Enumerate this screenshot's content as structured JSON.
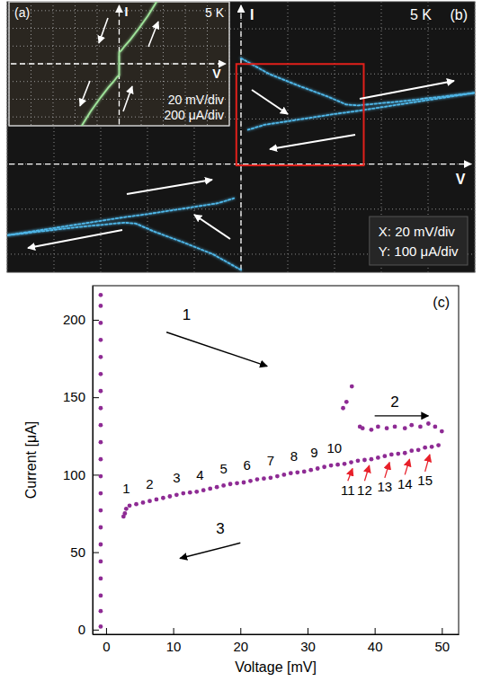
{
  "chart_data": [
    {
      "type": "line",
      "title": "(a)",
      "xlabel": "V",
      "ylabel": "I",
      "annotations": [
        {
          "text": "5 K"
        },
        {
          "text": "20 mV/div"
        },
        {
          "text": "200 μA/div"
        }
      ],
      "x": [
        -34,
        -26,
        -18,
        -10,
        -5,
        -2,
        0,
        0,
        2,
        5,
        10,
        18,
        26,
        34
      ],
      "values": [
        -700,
        -540,
        -400,
        -270,
        -200,
        -150,
        -130,
        130,
        150,
        200,
        270,
        400,
        540,
        700
      ],
      "color": "#9fe39a",
      "line_style": "solid",
      "xlim": [
        -100,
        100
      ],
      "ylim": [
        -700,
        700
      ],
      "xticks": [
        -100,
        -80,
        -60,
        -40,
        -20,
        0,
        20,
        40,
        60,
        80,
        100
      ],
      "yticks": [
        -600,
        -400,
        -200,
        0,
        200,
        400,
        600
      ],
      "grid": true,
      "tick_labels": false
    },
    {
      "type": "line",
      "title": "(b)",
      "xlabel": "V",
      "ylabel": "I",
      "annotations": [
        {
          "text": "5 K"
        },
        {
          "text": "X: 20 mV/div"
        },
        {
          "text": "Y: 100 μA/div"
        }
      ],
      "series": [
        {
          "x": [
            0,
            0,
            0,
            0,
            0,
            0,
            0,
            0,
            0,
            0,
            0
          ],
          "values": [
            -235,
            -180,
            -130,
            -80,
            -30,
            0,
            30,
            80,
            130,
            180,
            235
          ],
          "line_style": "solid"
        },
        {
          "x": [
            0,
            12,
            24,
            37,
            45,
            50,
            60,
            70,
            80,
            90,
            100
          ],
          "values": [
            235,
            200,
            175,
            150,
            132,
            130,
            135,
            140,
            146,
            152,
            158
          ],
          "line_style": "dotted"
        },
        {
          "x": [
            100,
            90,
            80,
            70,
            60,
            50,
            40,
            30,
            20,
            10,
            3
          ],
          "values": [
            158,
            150,
            142,
            134,
            126,
            118,
            111,
            103,
            95,
            87,
            76
          ],
          "line_style": "dotted"
        },
        {
          "x": [
            0,
            -12,
            -24,
            -37,
            -45,
            -50,
            -60,
            -70,
            -80,
            -90,
            -100
          ],
          "values": [
            -235,
            -200,
            -175,
            -150,
            -132,
            -130,
            -135,
            -140,
            -146,
            -152,
            -158
          ],
          "line_style": "dotted"
        },
        {
          "x": [
            -100,
            -90,
            -80,
            -70,
            -60,
            -50,
            -40,
            -30,
            -20,
            -10,
            -3
          ],
          "values": [
            -158,
            -150,
            -142,
            -134,
            -126,
            -118,
            -111,
            -103,
            -95,
            -87,
            -76
          ],
          "line_style": "dotted"
        }
      ],
      "color": "#4fb8ea",
      "xlim": [
        -100,
        100
      ],
      "ylim": [
        -240,
        360
      ],
      "xticks": [
        -100,
        -80,
        -60,
        -40,
        -20,
        0,
        20,
        40,
        60,
        80,
        100
      ],
      "yticks": [
        -200,
        -100,
        0,
        100,
        200,
        300
      ],
      "grid": true,
      "tick_labels": false
    },
    {
      "type": "scatter",
      "title": "(c)",
      "xlabel": "Voltage [mV]",
      "ylabel": "Current [μA]",
      "x": [
        -0.8,
        -0.8,
        -0.8,
        -0.8,
        -0.8,
        -0.8,
        -0.8,
        -0.8,
        -0.8,
        -0.8,
        -0.8,
        -0.8,
        -0.8,
        -0.8,
        -0.8,
        -0.8,
        -0.8,
        -0.8,
        -0.8,
        -0.8,
        -0.8,
        35.3,
        35.8,
        36.6,
        37.8,
        38.2,
        39.5,
        40.5,
        41.8,
        43,
        44.5,
        45.5,
        46.8,
        48,
        49,
        50,
        49.5,
        48.5,
        47.5,
        46.5,
        45.5,
        44.5,
        43.5,
        42.5,
        41.5,
        40.5,
        39.5,
        38.5,
        37.5,
        36.5,
        35.5,
        34.5,
        33.5,
        32.5,
        31.5,
        30.5,
        29.5,
        28.5,
        27.5,
        26.5,
        25.5,
        24.5,
        23.5,
        22.5,
        21.5,
        20.5,
        19.5,
        18.5,
        17.5,
        16.5,
        15.5,
        14.5,
        13.5,
        12.5,
        11.5,
        10.5,
        9.5,
        8.5,
        7.5,
        6.5,
        5.5,
        4.5,
        3.5,
        3,
        2.8,
        2.6
      ],
      "values": [
        2,
        12,
        22,
        33,
        44,
        55,
        66,
        77,
        88,
        99,
        110,
        121,
        132,
        143,
        154,
        165,
        176,
        187,
        198,
        209,
        216,
        143,
        147,
        157,
        131,
        130,
        129,
        131,
        130,
        131,
        130,
        132,
        131,
        133,
        131,
        128,
        119,
        118,
        117.5,
        116,
        115.5,
        114,
        113.5,
        113,
        112,
        111,
        110,
        109.5,
        109,
        108,
        107,
        106.5,
        106,
        105,
        104,
        103,
        102,
        101.5,
        101,
        100,
        99,
        98,
        97.5,
        97,
        96,
        95,
        94.5,
        94,
        93,
        92,
        91,
        90,
        89,
        88.5,
        88,
        87,
        86,
        85,
        84,
        83,
        82,
        81,
        80,
        78,
        75,
        73
      ],
      "color": "#8e2b94",
      "marker": "circle",
      "xlim": [
        -2,
        52.5
      ],
      "ylim": [
        -3,
        222
      ],
      "xticks": [
        0,
        10,
        20,
        30,
        40,
        50
      ],
      "yticks": [
        0,
        50,
        100,
        150,
        200
      ],
      "annotations": [
        {
          "text": "1",
          "x": 12,
          "y": 200,
          "arrow": {
            "from": [
              9,
              192
            ],
            "to": [
              24,
              170
            ],
            "color": "#000000"
          }
        },
        {
          "text": "2",
          "x": 43,
          "y": 144,
          "arrow": {
            "from": [
              40,
              138
            ],
            "to": [
              48,
              138
            ],
            "color": "#000000"
          }
        },
        {
          "text": "3",
          "x": 17,
          "y": 62,
          "arrow": {
            "from": [
              20,
              56
            ],
            "to": [
              11,
              46
            ],
            "color": "#000000"
          }
        },
        {
          "text": "1",
          "x": 3,
          "y": 88
        },
        {
          "text": "2",
          "x": 6.5,
          "y": 91
        },
        {
          "text": "3",
          "x": 10.5,
          "y": 95
        },
        {
          "text": "4",
          "x": 14,
          "y": 97
        },
        {
          "text": "5",
          "x": 17.5,
          "y": 101
        },
        {
          "text": "6",
          "x": 21,
          "y": 103
        },
        {
          "text": "7",
          "x": 24.5,
          "y": 106
        },
        {
          "text": "8",
          "x": 28,
          "y": 109
        },
        {
          "text": "9",
          "x": 31,
          "y": 111
        },
        {
          "text": "10",
          "x": 34,
          "y": 114
        },
        {
          "text": "11",
          "x": 36,
          "y": 87,
          "arrow": {
            "from": [
              36,
              96
            ],
            "to": [
              36.7,
              104
            ],
            "color": "#e8202a"
          }
        },
        {
          "text": "12",
          "x": 38.5,
          "y": 87,
          "arrow": {
            "from": [
              38.5,
              96
            ],
            "to": [
              39.2,
              106
            ],
            "color": "#e8202a"
          }
        },
        {
          "text": "13",
          "x": 41.5,
          "y": 89,
          "arrow": {
            "from": [
              41.5,
              98
            ],
            "to": [
              42.2,
              108
            ],
            "color": "#e8202a"
          }
        },
        {
          "text": "14",
          "x": 44.5,
          "y": 91,
          "arrow": {
            "from": [
              44.5,
              100
            ],
            "to": [
              45.2,
              110
            ],
            "color": "#e8202a"
          }
        },
        {
          "text": "15",
          "x": 47.5,
          "y": 93,
          "arrow": {
            "from": [
              47.5,
              102
            ],
            "to": [
              48.2,
              113
            ],
            "color": "#e8202a"
          }
        }
      ]
    }
  ]
}
